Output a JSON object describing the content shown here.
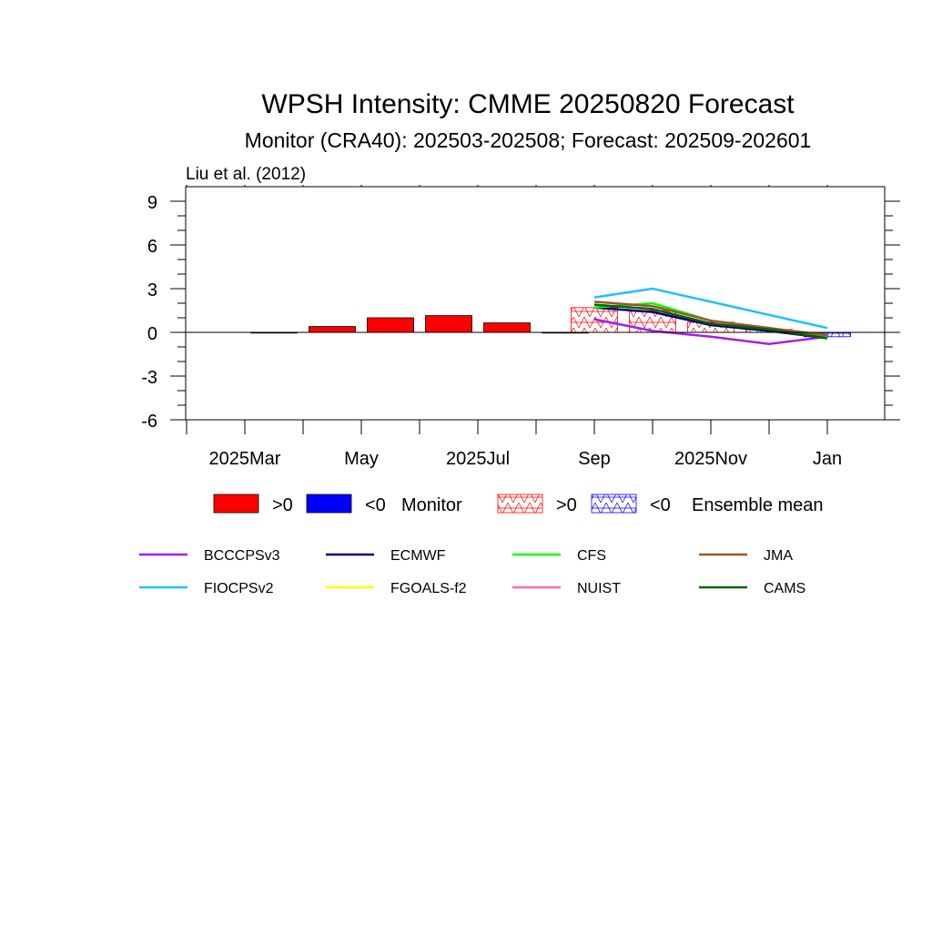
{
  "chart_data": {
    "type": "bar",
    "title": "WPSH Intensity: CMME 20250820 Forecast",
    "subtitle": "Monitor (CRA40): 202503-202508; Forecast: 202509-202601",
    "note": "Liu et al. (2012)",
    "x_tick_labels": [
      "2025Mar",
      "May",
      "2025Jul",
      "Sep",
      "2025Nov",
      "Jan"
    ],
    "months": [
      "2025-02",
      "2025-03",
      "2025-04",
      "2025-05",
      "2025-06",
      "2025-07",
      "2025-08",
      "2025-09",
      "2025-10",
      "2025-11",
      "2025-12",
      "2026-01"
    ],
    "ylim": [
      -6,
      10
    ],
    "y_ticks": [
      -6,
      -3,
      0,
      3,
      6,
      9
    ],
    "monitor": {
      "label": "Monitor",
      "months": [
        "2025-03",
        "2025-04",
        "2025-05",
        "2025-06",
        "2025-07",
        "2025-08"
      ],
      "values": [
        0,
        0.4,
        1.0,
        1.15,
        0.65,
        0
      ],
      "positive_color": "#ff0000",
      "negative_color": "#0000ff"
    },
    "ensemble_mean": {
      "label": "Ensemble mean",
      "months": [
        "2025-09",
        "2025-10",
        "2025-11",
        "2025-12",
        "2026-01"
      ],
      "values": [
        1.7,
        1.5,
        0.7,
        0.2,
        -0.3
      ],
      "positive_color": "#ff0000",
      "negative_color": "#0000ff"
    },
    "legend_signs": {
      "positive": ">0",
      "negative": "<0"
    },
    "series": [
      {
        "name": "BCCCPSv3",
        "color": "#a020f0",
        "months": [
          "2025-09",
          "2025-10",
          "2025-11",
          "2025-12",
          "2026-01"
        ],
        "values": [
          0.9,
          0.1,
          -0.3,
          -0.8,
          -0.3
        ]
      },
      {
        "name": "ECMWF",
        "color": "#000080",
        "months": [
          "2025-09",
          "2025-10",
          "2025-11",
          "2025-12",
          "2026-01"
        ],
        "values": [
          1.7,
          1.4,
          0.5,
          0.1,
          -0.4
        ]
      },
      {
        "name": "CFS",
        "color": "#00ff00",
        "months": [
          "2025-09",
          "2025-10",
          "2025-11",
          "2025-12",
          "2026-01"
        ],
        "values": [
          1.7,
          2.0,
          0.8,
          0.3,
          -0.3
        ]
      },
      {
        "name": "JMA",
        "color": "#a0522d",
        "months": [
          "2025-09",
          "2025-10",
          "2025-11",
          "2025-12",
          "2026-01"
        ],
        "values": [
          2.1,
          1.8,
          0.8,
          0.3,
          -0.2
        ]
      },
      {
        "name": "FIOCPSv2",
        "color": "#1ebfff",
        "months": [
          "2025-09",
          "2025-10",
          "2025-11",
          "2025-12",
          "2026-01"
        ],
        "values": [
          2.4,
          3.0,
          2.1,
          1.2,
          0.3
        ]
      },
      {
        "name": "FGOALS-f2",
        "color": "#ffff00",
        "months": [
          "2025-09",
          "2025-10",
          "2025-11",
          "2025-12",
          "2026-01"
        ],
        "values": [
          null,
          null,
          null,
          null,
          null
        ]
      },
      {
        "name": "NUIST",
        "color": "#ff69b4",
        "months": [
          "2025-09",
          "2025-10",
          "2025-11",
          "2025-12",
          "2026-01"
        ],
        "values": [
          null,
          null,
          null,
          null,
          null
        ]
      },
      {
        "name": "CAMS",
        "color": "#006400",
        "months": [
          "2025-09",
          "2025-10",
          "2025-11",
          "2025-12",
          "2026-01"
        ],
        "values": [
          1.9,
          1.6,
          0.6,
          0.2,
          -0.4
        ]
      }
    ],
    "grid": false
  }
}
